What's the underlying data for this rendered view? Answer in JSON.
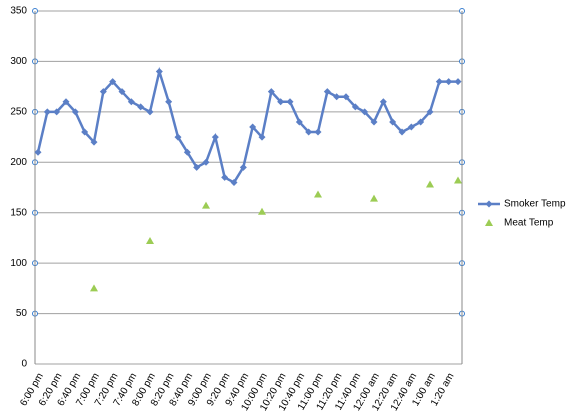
{
  "chart_data": {
    "type": "line",
    "categories": [
      "6:00 pm",
      null,
      "6:20 pm",
      null,
      "6:40 pm",
      null,
      "7:00 pm",
      null,
      "7:20 pm",
      null,
      "7:40 pm",
      null,
      "8:00 pm",
      null,
      "8:20 pm",
      null,
      "8:40 pm",
      null,
      "9:00 pm",
      null,
      "9:20 pm",
      null,
      "9:40 pm",
      null,
      "10:00 pm",
      null,
      "10:20 pm",
      null,
      "10:40 pm",
      null,
      "11:00 pm",
      null,
      "11:20 pm",
      null,
      "11:40 pm",
      null,
      "12:00 am",
      null,
      "12:20 am",
      null,
      "12:40 am",
      null,
      "1:00 am",
      null,
      "1:20 am",
      null
    ],
    "series": [
      {
        "name": "Smoker Temp",
        "color": "#5b7fc6",
        "line": true,
        "marker": "diamond",
        "values": [
          210,
          250,
          250,
          260,
          250,
          230,
          220,
          270,
          280,
          270,
          260,
          255,
          250,
          290,
          260,
          225,
          210,
          195,
          200,
          225,
          185,
          180,
          195,
          235,
          225,
          270,
          260,
          260,
          240,
          230,
          230,
          270,
          265,
          265,
          255,
          250,
          240,
          260,
          240,
          230,
          235,
          240,
          250,
          280,
          280,
          280
        ]
      },
      {
        "name": "Meat Temp",
        "color": "#9ccc54",
        "line": false,
        "marker": "triangle",
        "values": [
          null,
          null,
          null,
          null,
          null,
          null,
          75,
          null,
          null,
          null,
          null,
          null,
          122,
          null,
          null,
          null,
          null,
          null,
          157,
          null,
          null,
          null,
          null,
          null,
          151,
          null,
          null,
          null,
          null,
          null,
          168,
          null,
          null,
          null,
          null,
          null,
          164,
          null,
          null,
          null,
          null,
          null,
          178,
          null,
          null,
          182
        ]
      }
    ],
    "ylim": [
      0,
      350
    ],
    "yticks": [
      0,
      50,
      100,
      150,
      200,
      250,
      300,
      350
    ],
    "grid": true,
    "legend": "right"
  }
}
